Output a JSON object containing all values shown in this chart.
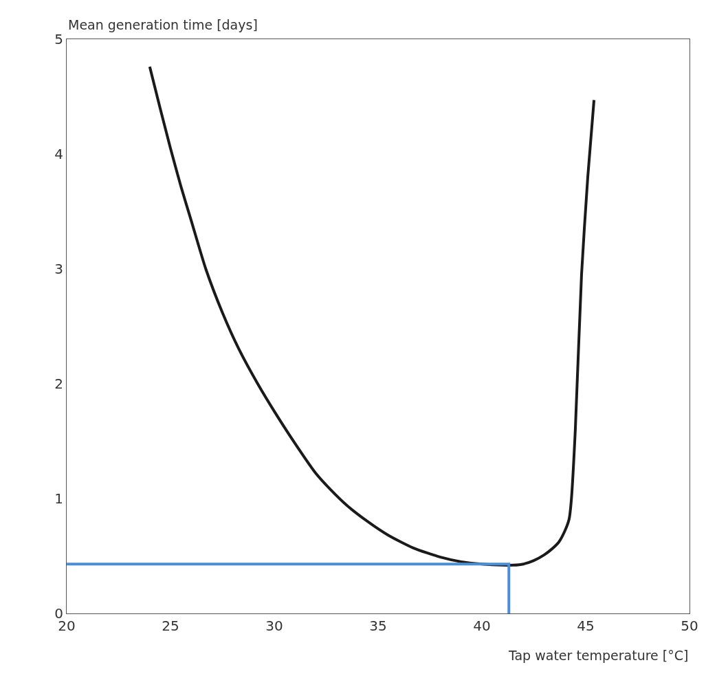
{
  "chart_data": {
    "type": "line",
    "xlabel": "Tap water temperature [°C]",
    "ylabel": "Mean generation time [days]",
    "xlim": [
      20,
      50
    ],
    "xticks": [
      20,
      25,
      30,
      35,
      40,
      45,
      50
    ],
    "ylim": [
      0,
      5
    ],
    "yticks": [
      0,
      1,
      2,
      3,
      4,
      5
    ],
    "grid": false,
    "marker": "none",
    "line_style": "solid",
    "series": [
      {
        "color": "#1a1a1a",
        "x": [
          24,
          24.5,
          25,
          25.5,
          26,
          26.7,
          27.5,
          28.3,
          29.2,
          30,
          31,
          32,
          32.7,
          33.5,
          34.5,
          35.5,
          36.7,
          38,
          39,
          40,
          41,
          41.5,
          42,
          42.5,
          43,
          43.3,
          43.7,
          44,
          44.2,
          44.3,
          44.5,
          44.8,
          45.1,
          45.4
        ],
        "values": [
          4.76,
          4.4,
          4.05,
          3.72,
          3.42,
          3.0,
          2.62,
          2.3,
          2.0,
          1.76,
          1.48,
          1.22,
          1.08,
          0.94,
          0.8,
          0.68,
          0.57,
          0.49,
          0.45,
          0.43,
          0.42,
          0.42,
          0.43,
          0.46,
          0.51,
          0.55,
          0.62,
          0.72,
          0.82,
          0.97,
          1.6,
          2.95,
          3.8,
          4.47
        ]
      },
      {
        "color": "#4a8fd6",
        "x": [
          20,
          41.3,
          41.3
        ],
        "values": [
          0.43,
          0.43,
          0
        ]
      }
    ]
  }
}
